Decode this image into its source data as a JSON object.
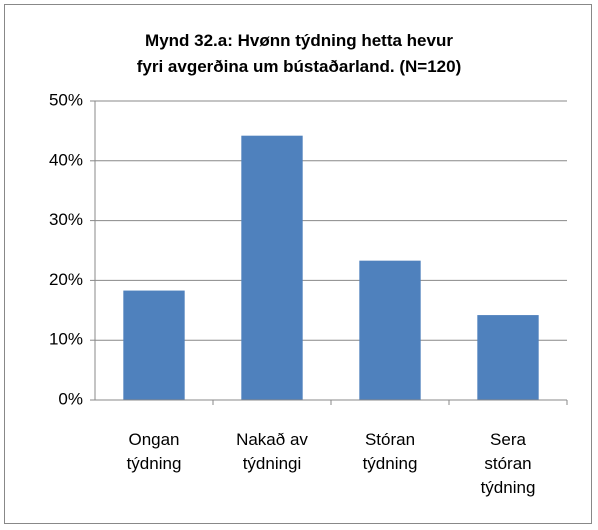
{
  "chart_data": {
    "type": "bar",
    "title": "Mynd 32.a: Hvønn týdning hetta hevur\nfyri avgerðina um bústaðarland. (N=120)",
    "categories": [
      "Ongan\ntýdning",
      "Nakað av\ntýdningi",
      "Stóran\ntýdning",
      "Sera\nstóran\ntýdning"
    ],
    "values": [
      18.3,
      44.2,
      23.3,
      14.2
    ],
    "color": "#4f81bd",
    "ylim": [
      0,
      50
    ],
    "yticks": [
      {
        "value": 0,
        "label": "0%"
      },
      {
        "value": 10,
        "label": "10%"
      },
      {
        "value": 20,
        "label": "20%"
      },
      {
        "value": 30,
        "label": "30%"
      },
      {
        "value": 40,
        "label": "40%"
      },
      {
        "value": 50,
        "label": "50%"
      }
    ],
    "grid": true
  }
}
